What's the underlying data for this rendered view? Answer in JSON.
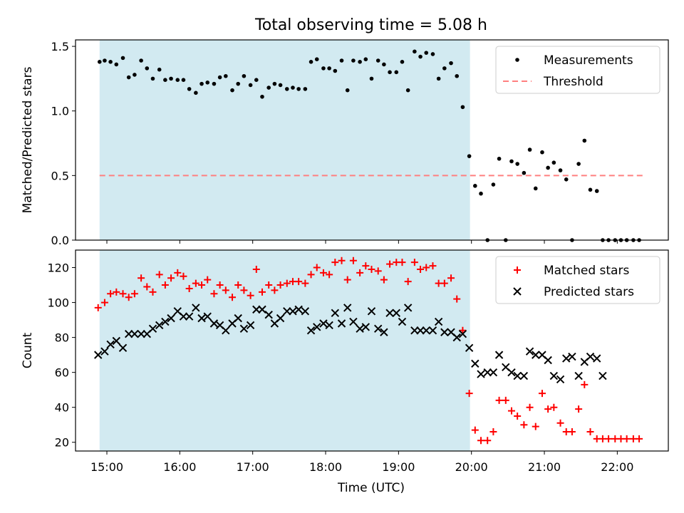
{
  "figure": {
    "title": "Total observing time = 5.08 h",
    "xlabel": "Time (UTC)",
    "xticks": [
      "15:00",
      "16:00",
      "17:00",
      "18:00",
      "19:00",
      "20:00",
      "21:00",
      "22:00"
    ],
    "shaded_region": {
      "start": 14.9,
      "end": 19.98,
      "color": "#add8e6"
    }
  },
  "chart_data": [
    {
      "type": "scatter",
      "ylabel": "Matched/Predicted stars",
      "xlim": [
        14.57,
        22.7
      ],
      "ylim": [
        0,
        1.55
      ],
      "yticks": [
        0.0,
        0.5,
        1.0,
        1.5
      ],
      "ytick_labels": [
        "0.0",
        "0.5",
        "1.0",
        "1.5"
      ],
      "legend": "upper right",
      "series": [
        {
          "name": "Measurements",
          "marker": "dot",
          "color": "#000000",
          "x": [
            14.9,
            14.97,
            15.05,
            15.13,
            15.22,
            15.3,
            15.38,
            15.47,
            15.55,
            15.63,
            15.72,
            15.8,
            15.88,
            15.97,
            16.05,
            16.13,
            16.22,
            16.3,
            16.38,
            16.47,
            16.55,
            16.63,
            16.72,
            16.8,
            16.88,
            16.97,
            17.05,
            17.13,
            17.22,
            17.3,
            17.38,
            17.47,
            17.55,
            17.63,
            17.72,
            17.8,
            17.88,
            17.97,
            18.05,
            18.13,
            18.22,
            18.3,
            18.38,
            18.47,
            18.55,
            18.63,
            18.72,
            18.8,
            18.88,
            18.97,
            19.05,
            19.13,
            19.22,
            19.3,
            19.38,
            19.47,
            19.55,
            19.63,
            19.72,
            19.8,
            19.88,
            19.97,
            20.05,
            20.13,
            20.22,
            20.3,
            20.38,
            20.47,
            20.55,
            20.63,
            20.72,
            20.8,
            20.88,
            20.97,
            21.05,
            21.13,
            21.22,
            21.3,
            21.38,
            21.47,
            21.55,
            21.63,
            21.72,
            21.8,
            21.88,
            21.97,
            22.05,
            22.13,
            22.22,
            22.3
          ],
          "y": [
            1.38,
            1.39,
            1.38,
            1.36,
            1.41,
            1.26,
            1.28,
            1.39,
            1.33,
            1.25,
            1.32,
            1.24,
            1.25,
            1.24,
            1.24,
            1.17,
            1.14,
            1.21,
            1.22,
            1.21,
            1.26,
            1.27,
            1.16,
            1.21,
            1.27,
            1.2,
            1.24,
            1.11,
            1.18,
            1.21,
            1.2,
            1.17,
            1.18,
            1.17,
            1.17,
            1.38,
            1.4,
            1.33,
            1.33,
            1.31,
            1.39,
            1.16,
            1.39,
            1.38,
            1.4,
            1.25,
            1.39,
            1.36,
            1.3,
            1.3,
            1.38,
            1.16,
            1.46,
            1.42,
            1.45,
            1.44,
            1.25,
            1.33,
            1.37,
            1.27,
            1.03,
            0.65,
            0.42,
            0.36,
            0.0,
            0.43,
            0.63,
            0.0,
            0.61,
            0.59,
            0.52,
            0.7,
            0.4,
            0.68,
            0.56,
            0.6,
            0.54,
            0.47,
            0.0,
            0.59,
            0.77,
            0.39,
            0.38,
            0.0,
            0.0,
            0.0,
            0.0,
            0.0,
            0.0,
            0.0
          ]
        },
        {
          "name": "Threshold",
          "marker": "dashed-line",
          "color": "#ff7f7f",
          "x": [
            14.9,
            22.35
          ],
          "y": [
            0.5,
            0.5
          ]
        }
      ]
    },
    {
      "type": "scatter",
      "ylabel": "Count",
      "xlim": [
        14.57,
        22.7
      ],
      "ylim": [
        15,
        130
      ],
      "yticks": [
        20,
        40,
        60,
        80,
        100,
        120
      ],
      "ytick_labels": [
        "20",
        "40",
        "60",
        "80",
        "100",
        "120"
      ],
      "legend": "upper right",
      "series": [
        {
          "name": "Matched stars",
          "marker": "plus",
          "color": "#ff0000",
          "x": [
            14.88,
            14.97,
            15.05,
            15.13,
            15.22,
            15.3,
            15.38,
            15.47,
            15.55,
            15.63,
            15.72,
            15.8,
            15.88,
            15.97,
            16.05,
            16.13,
            16.22,
            16.3,
            16.38,
            16.47,
            16.55,
            16.63,
            16.72,
            16.8,
            16.88,
            16.97,
            17.05,
            17.13,
            17.22,
            17.3,
            17.38,
            17.47,
            17.55,
            17.63,
            17.72,
            17.8,
            17.88,
            17.97,
            18.05,
            18.13,
            18.22,
            18.3,
            18.38,
            18.47,
            18.55,
            18.63,
            18.72,
            18.8,
            18.88,
            18.97,
            19.05,
            19.13,
            19.22,
            19.3,
            19.38,
            19.47,
            19.55,
            19.63,
            19.72,
            19.8,
            19.88,
            19.97,
            20.05,
            20.13,
            20.22,
            20.3,
            20.38,
            20.47,
            20.55,
            20.63,
            20.72,
            20.8,
            20.88,
            20.97,
            21.05,
            21.13,
            21.22,
            21.3,
            21.38,
            21.47,
            21.55,
            21.63,
            21.72,
            21.8,
            21.88,
            21.97,
            22.05,
            22.13,
            22.22,
            22.3
          ],
          "y": [
            97,
            100,
            105,
            106,
            105,
            103,
            105,
            114,
            109,
            106,
            116,
            110,
            114,
            117,
            115,
            108,
            111,
            110,
            113,
            105,
            110,
            107,
            103,
            110,
            107,
            104,
            119,
            106,
            110,
            107,
            110,
            111,
            112,
            112,
            111,
            116,
            120,
            117,
            116,
            123,
            124,
            113,
            124,
            117,
            121,
            119,
            118,
            113,
            122,
            123,
            123,
            112,
            123,
            119,
            120,
            121,
            111,
            111,
            114,
            102,
            84,
            48,
            27,
            21,
            21,
            26,
            44,
            44,
            38,
            35,
            30,
            40,
            29,
            48,
            39,
            40,
            31,
            26,
            26,
            39,
            53,
            26,
            22,
            22,
            22,
            22,
            22,
            22,
            22,
            22
          ]
        },
        {
          "name": "Predicted stars",
          "marker": "x",
          "color": "#000000",
          "x": [
            14.88,
            14.97,
            15.05,
            15.13,
            15.22,
            15.3,
            15.38,
            15.47,
            15.55,
            15.63,
            15.72,
            15.8,
            15.88,
            15.97,
            16.05,
            16.13,
            16.22,
            16.3,
            16.38,
            16.47,
            16.55,
            16.63,
            16.72,
            16.8,
            16.88,
            16.97,
            17.05,
            17.13,
            17.22,
            17.3,
            17.38,
            17.47,
            17.55,
            17.63,
            17.72,
            17.8,
            17.88,
            17.97,
            18.05,
            18.13,
            18.22,
            18.3,
            18.38,
            18.47,
            18.55,
            18.63,
            18.72,
            18.8,
            18.88,
            18.97,
            19.05,
            19.13,
            19.22,
            19.3,
            19.38,
            19.47,
            19.55,
            19.63,
            19.72,
            19.8,
            19.88,
            19.97,
            20.05,
            20.13,
            20.22,
            20.3,
            20.38,
            20.47,
            20.55,
            20.63,
            20.72,
            20.8,
            20.88,
            20.97,
            21.05,
            21.13,
            21.22,
            21.3,
            21.38,
            21.47,
            21.55,
            21.63,
            21.72,
            21.8
          ],
          "y": [
            70,
            72,
            76,
            78,
            74,
            82,
            82,
            82,
            82,
            85,
            87,
            89,
            91,
            95,
            92,
            92,
            97,
            91,
            92,
            88,
            87,
            84,
            88,
            91,
            85,
            87,
            96,
            96,
            93,
            88,
            91,
            95,
            95,
            96,
            95,
            84,
            86,
            88,
            87,
            94,
            88,
            97,
            89,
            85,
            86,
            95,
            85,
            83,
            94,
            94,
            89,
            97,
            84,
            84,
            84,
            84,
            89,
            83,
            83,
            80,
            82,
            74,
            65,
            59,
            60,
            60,
            70,
            63,
            60,
            58,
            58,
            72,
            70,
            70,
            67,
            58,
            56,
            68,
            69,
            58,
            66,
            69,
            68,
            58
          ]
        }
      ]
    }
  ]
}
